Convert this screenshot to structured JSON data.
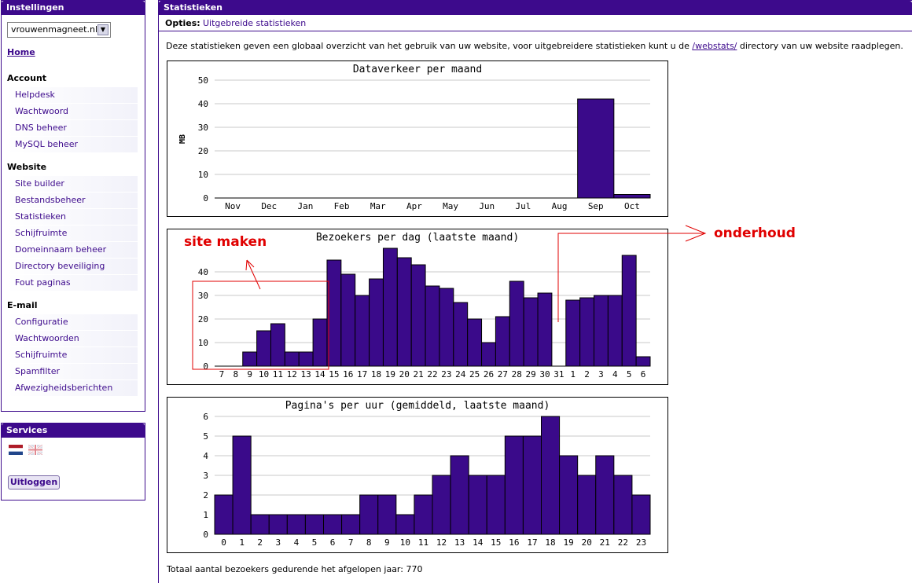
{
  "sidebar": {
    "title": "Instellingen",
    "domain": "vrouwenmagneet.nl",
    "home": "Home",
    "sections": [
      {
        "title": "Account",
        "items": [
          "Helpdesk",
          "Wachtwoord",
          "DNS beheer",
          "MySQL beheer"
        ]
      },
      {
        "title": "Website",
        "items": [
          "Site builder",
          "Bestandsbeheer",
          "Statistieken",
          "Schijfruimte",
          "Domeinnaam beheer",
          "Directory beveiliging",
          "Fout paginas"
        ]
      },
      {
        "title": "E-mail",
        "items": [
          "Configuratie",
          "Wachtwoorden",
          "Schijfruimte",
          "Spamfilter",
          "Afwezigheidsberichten"
        ]
      }
    ]
  },
  "services": {
    "title": "Services",
    "logout": "Uitloggen"
  },
  "main": {
    "title": "Statistieken",
    "options_label": "Opties:",
    "options_link": "Uitgebreide statistieken",
    "intro_before": "Deze statistieken geven een globaal overzicht van het gebruik van uw website, voor uitgebreidere statistieken kunt u de ",
    "intro_link": "/webstats/",
    "intro_after": " directory van uw website raadplegen.",
    "total": "Totaal aantal bezoekers gedurende het afgelopen jaar: 770"
  },
  "annotations": {
    "site": "site maken",
    "maint": "onderhoud"
  },
  "colors": {
    "accent": "#3d0a8c",
    "bar": "#3a0a8a",
    "annotation": "#e00000"
  },
  "chart_data": [
    {
      "type": "bar",
      "title": "Dataverkeer per maand",
      "ylabel": "MB",
      "categories": [
        "Nov",
        "Dec",
        "Jan",
        "Feb",
        "Mar",
        "Apr",
        "May",
        "Jun",
        "Jul",
        "Aug",
        "Sep",
        "Oct"
      ],
      "values": [
        0,
        0,
        0,
        0,
        0,
        0,
        0,
        0,
        0,
        0,
        42,
        1.5
      ],
      "ylim": [
        0,
        50
      ],
      "yticks": [
        0,
        10,
        20,
        30,
        40,
        50
      ],
      "grid": true
    },
    {
      "type": "bar",
      "title": "Bezoekers per dag (laatste maand)",
      "categories": [
        "7",
        "8",
        "9",
        "10",
        "11",
        "12",
        "13",
        "14",
        "15",
        "16",
        "17",
        "18",
        "19",
        "20",
        "21",
        "22",
        "23",
        "24",
        "25",
        "26",
        "27",
        "28",
        "29",
        "30",
        "31",
        "1",
        "2",
        "3",
        "4",
        "5",
        "6"
      ],
      "values": [
        0,
        0,
        6,
        15,
        18,
        6,
        6,
        20,
        45,
        39,
        30,
        37,
        50,
        46,
        43,
        34,
        33,
        27,
        20,
        10,
        21,
        36,
        29,
        31,
        0,
        28,
        29,
        30,
        30,
        47,
        4
      ],
      "ylim": [
        0,
        50
      ],
      "yticks": [
        0,
        10,
        20,
        30,
        40
      ],
      "grid": true
    },
    {
      "type": "bar",
      "title": "Pagina's per uur (gemiddeld, laatste maand)",
      "categories": [
        "0",
        "1",
        "2",
        "3",
        "4",
        "5",
        "6",
        "7",
        "8",
        "9",
        "10",
        "11",
        "12",
        "13",
        "14",
        "15",
        "16",
        "17",
        "18",
        "19",
        "20",
        "21",
        "22",
        "23"
      ],
      "values": [
        2,
        5,
        1,
        1,
        1,
        1,
        1,
        1,
        2,
        2,
        1,
        2,
        3,
        4,
        3,
        3,
        5,
        5,
        6,
        4,
        3,
        4,
        3,
        2
      ],
      "ylim": [
        0,
        6
      ],
      "yticks": [
        0,
        1,
        2,
        3,
        4,
        5,
        6
      ],
      "grid": true
    }
  ]
}
